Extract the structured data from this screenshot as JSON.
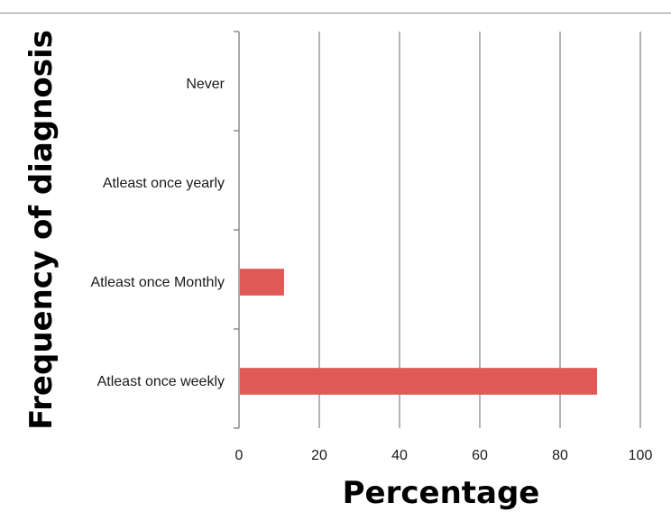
{
  "chart_data": {
    "type": "bar",
    "orientation": "horizontal",
    "categories": [
      "Never",
      "Atleast once yearly",
      "Atleast once Monthly",
      "Atleast once weekly"
    ],
    "values": [
      0,
      0,
      11,
      89
    ],
    "xlabel": "Percentage",
    "ylabel": "Frequency of diagnosis",
    "xlim": [
      0,
      100
    ],
    "xticks": [
      "0",
      "20",
      "40",
      "60",
      "80",
      "100"
    ],
    "grid": "vertical",
    "legend": "none",
    "bar_color": "#e05a55"
  }
}
